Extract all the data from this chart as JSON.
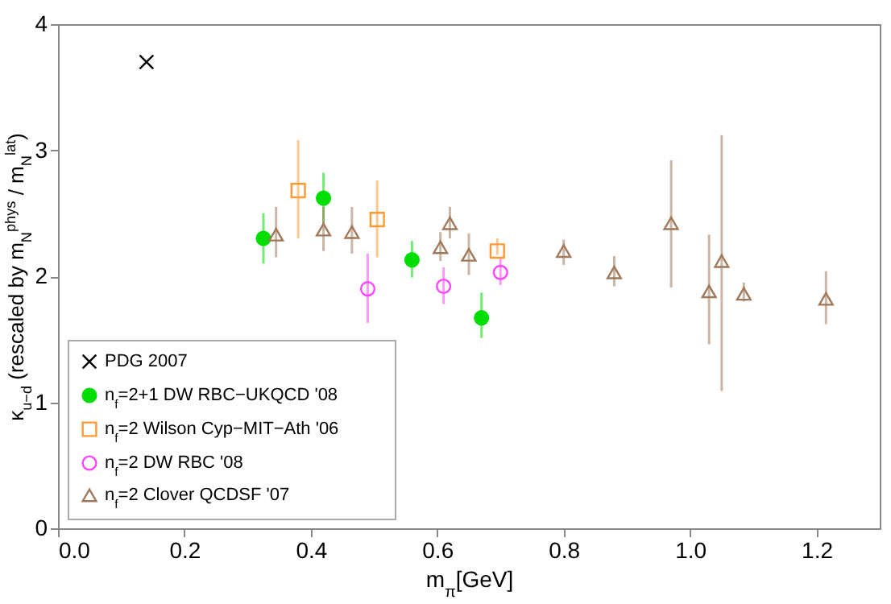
{
  "chart_data": {
    "type": "scatter",
    "xlabel": "m$_{π}$[GeV]",
    "ylabel": "κ$_{u−d}$ (rescaled by m$_{N}$$^{phys}$ / m$_{N}$$^{lat}$)",
    "xlim": [
      0,
      1.3
    ],
    "ylim": [
      0,
      4
    ],
    "xticks": [
      {
        "value": 0,
        "label": "0.0"
      },
      {
        "value": 0.2,
        "label": "0.2"
      },
      {
        "value": 0.4,
        "label": "0.4"
      },
      {
        "value": 0.6,
        "label": "0.6"
      },
      {
        "value": 0.8,
        "label": "0.8"
      },
      {
        "value": 1,
        "label": "1.0"
      },
      {
        "value": 1.2,
        "label": "1.2"
      }
    ],
    "yticks": [
      0,
      1,
      2,
      3,
      4
    ],
    "grid": false,
    "legend": "bottom left",
    "series": [
      {
        "name": "PDG 2007",
        "color": "#000000",
        "marker": "cross",
        "x": [
          0.14
        ],
        "values": [
          3.7
        ]
      },
      {
        "name": "n$_{f}$=2+1 DW RBC−UKQCD '08",
        "color": "#00dd00",
        "marker": "circle",
        "x": [
          0.325,
          0.42,
          0.56,
          0.67
        ],
        "values": [
          2.3,
          2.62,
          2.13,
          1.67
        ],
        "errors": [
          [
            2.1,
            2.5
          ],
          [
            2.4,
            2.82
          ],
          [
            1.99,
            2.28
          ],
          [
            1.51,
            1.87
          ]
        ]
      },
      {
        "name": "n$_{f}$=2 Wilson Cyp−MIT−Ath '06",
        "color": "#ff9933",
        "marker": "square",
        "x": [
          0.38,
          0.505,
          0.695
        ],
        "values": [
          2.68,
          2.45,
          2.2
        ],
        "errors": [
          [
            2.3,
            3.08
          ],
          [
            2.15,
            2.76
          ],
          [
            2.17,
            2.3
          ]
        ]
      },
      {
        "name": "n$_{f}$=2 DW RBC '08",
        "color": "#ff44ff",
        "marker": "circle",
        "x": [
          0.49,
          0.61,
          0.7
        ],
        "values": [
          1.9,
          1.92,
          2.03
        ],
        "errors": [
          [
            1.63,
            2.18
          ],
          [
            1.78,
            2.07
          ],
          [
            1.93,
            2.14
          ]
        ]
      },
      {
        "name": "n$_{f}$=2 Clover QCDSF '07",
        "color": "#a0785a",
        "marker": "triangle",
        "x": [
          0.345,
          0.42,
          0.465,
          0.605,
          0.62,
          0.65,
          0.8,
          0.88,
          0.97,
          1.03,
          1.05,
          1.085,
          1.215
        ],
        "values": [
          2.33,
          2.37,
          2.35,
          2.23,
          2.42,
          2.17,
          2.2,
          2.03,
          2.42,
          1.88,
          2.12,
          1.86,
          1.82
        ],
        "errors": [
          [
            2.15,
            2.55
          ],
          [
            2.2,
            2.55
          ],
          [
            2.18,
            2.55
          ],
          [
            2.12,
            2.35
          ],
          [
            2.3,
            2.55
          ],
          [
            2.01,
            2.34
          ],
          [
            2.09,
            2.29
          ],
          [
            1.92,
            2.16
          ],
          [
            1.91,
            2.92
          ],
          [
            1.46,
            2.33
          ],
          [
            1.09,
            3.12
          ],
          [
            1.8,
            1.95
          ],
          [
            1.62,
            2.04
          ]
        ]
      }
    ]
  }
}
